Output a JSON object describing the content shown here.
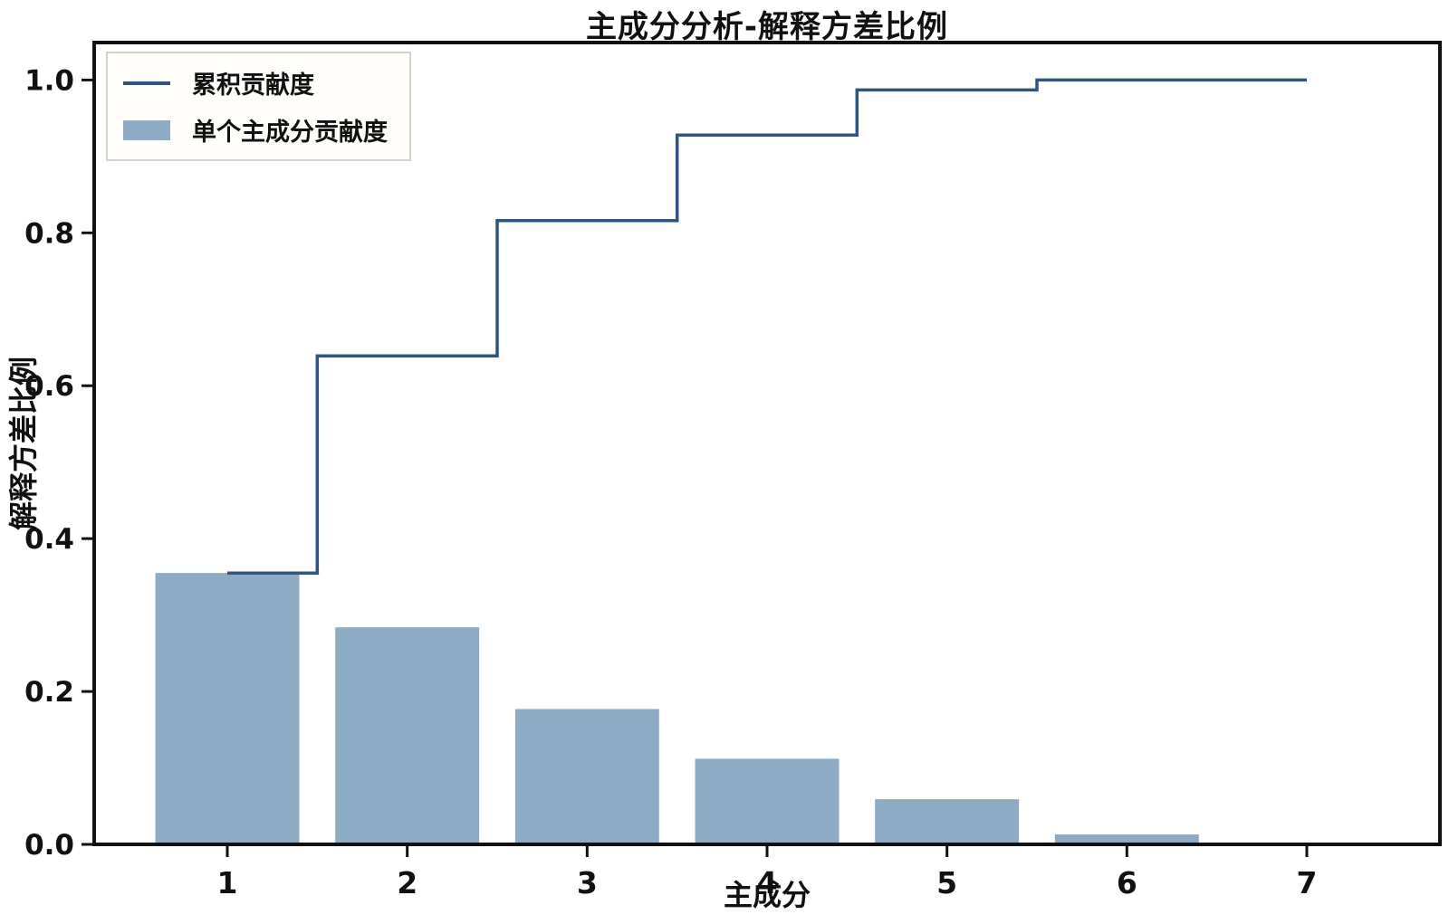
{
  "title": "主成分分析-解释方差比例",
  "colors": {
    "bar": "#8EABC6",
    "line": "#2E5584",
    "axis": "#111111",
    "text": "#111111",
    "legend_border": "#d5d2ca",
    "legend_bg": "#fffefb"
  },
  "legend": {
    "items": [
      {
        "label": "累积贡献度",
        "swatch": "line"
      },
      {
        "label": "单个主成分贡献度",
        "swatch": "bar"
      }
    ]
  },
  "chart_data": {
    "type": "bar",
    "title": "主成分分析-解释方差比例",
    "xlabel": "主成分",
    "ylabel": "解释方差比例",
    "categories": [
      1,
      2,
      3,
      4,
      5,
      6,
      7
    ],
    "series": [
      {
        "name": "单个主成分贡献度",
        "type": "bar",
        "values": [
          0.355,
          0.284,
          0.177,
          0.112,
          0.059,
          0.013,
          0.0
        ]
      },
      {
        "name": "累积贡献度",
        "type": "step-line",
        "step_mode": "mid",
        "values": [
          0.355,
          0.639,
          0.816,
          0.928,
          0.987,
          1.0,
          1.0
        ]
      }
    ],
    "bar_width": 0.8,
    "xticks": [
      "1",
      "2",
      "3",
      "4",
      "5",
      "6",
      "7"
    ],
    "yticks": [
      "0.0",
      "0.2",
      "0.4",
      "0.6",
      "0.8",
      "1.0"
    ],
    "xlim": [
      0.26,
      7.74
    ],
    "ylim": [
      0,
      1.049
    ],
    "grid": false,
    "legend_position": "upper left"
  }
}
